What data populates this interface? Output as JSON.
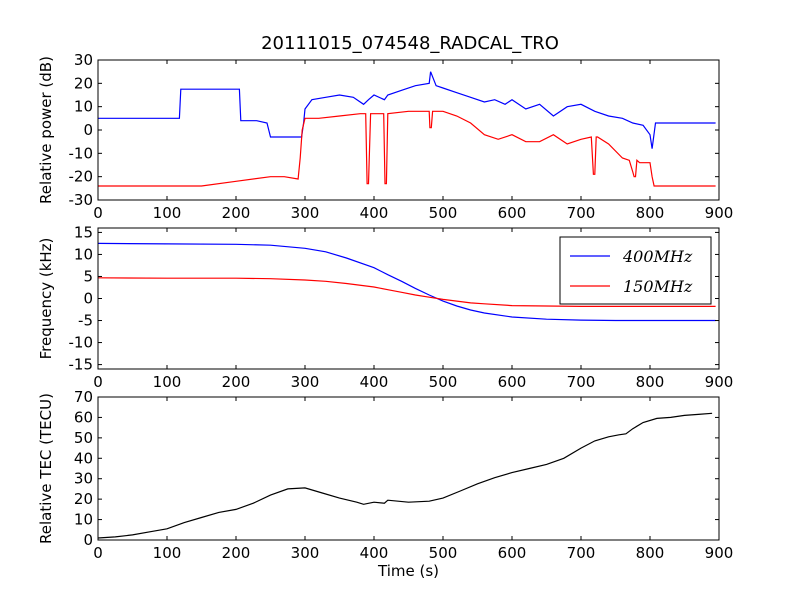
{
  "figure": {
    "title": "20111015_074548_RADCAL_TRO"
  },
  "chart_data": [
    {
      "type": "line",
      "ylabel": "Relative power (dB)",
      "xlabel": "",
      "xlim": [
        0,
        900
      ],
      "ylim": [
        -30,
        30
      ],
      "xticks": [
        0,
        100,
        200,
        300,
        400,
        500,
        600,
        700,
        800,
        900
      ],
      "yticks": [
        -30,
        -20,
        -10,
        0,
        10,
        20,
        30
      ],
      "grid": false,
      "legend": "none",
      "series": [
        {
          "color": "#0000ff",
          "x": [
            0,
            40,
            80,
            118,
            120,
            150,
            180,
            205,
            207,
            230,
            245,
            250,
            270,
            290,
            295,
            298,
            300,
            310,
            330,
            350,
            370,
            385,
            392,
            400,
            415,
            420,
            440,
            460,
            480,
            482,
            490,
            500,
            520,
            540,
            560,
            575,
            590,
            600,
            620,
            640,
            660,
            680,
            700,
            720,
            740,
            760,
            775,
            790,
            800,
            803,
            808,
            830,
            860,
            895
          ],
          "y": [
            5,
            5,
            5,
            5,
            17.5,
            17.5,
            17.5,
            17.5,
            4,
            4,
            3,
            -3,
            -3,
            -3,
            -3,
            3,
            9,
            13,
            14,
            15,
            14,
            11,
            13,
            15,
            13,
            15,
            17,
            19,
            20,
            25,
            19,
            18,
            16,
            14,
            12,
            13,
            11,
            13,
            9,
            11,
            6,
            10,
            11,
            8,
            6,
            5,
            3,
            2,
            -2,
            -8,
            3,
            3,
            3,
            3
          ]
        },
        {
          "color": "#ff0000",
          "x": [
            0,
            50,
            100,
            150,
            200,
            250,
            270,
            290,
            293,
            296,
            300,
            320,
            350,
            380,
            388,
            390,
            392,
            395,
            410,
            414,
            416,
            418,
            420,
            450,
            480,
            481,
            483,
            485,
            500,
            520,
            540,
            560,
            580,
            600,
            620,
            640,
            660,
            680,
            700,
            715,
            718,
            720,
            722,
            724,
            740,
            760,
            770,
            775,
            777,
            779,
            781,
            785,
            800,
            803,
            806,
            830,
            860,
            895
          ],
          "y": [
            -24,
            -24,
            -24,
            -24,
            -22,
            -20,
            -20,
            -21,
            -12,
            0,
            5,
            5,
            6,
            7,
            7,
            -23,
            -23,
            7,
            7,
            7,
            -23,
            -23,
            7,
            8,
            8,
            1,
            1,
            8,
            8,
            6,
            3,
            -2,
            -4,
            -2,
            -5,
            -5,
            -2,
            -6,
            -4,
            -3,
            -19,
            -19,
            -3,
            -3,
            -6,
            -12,
            -13,
            -18,
            -20,
            -20,
            -13,
            -14,
            -14,
            -20,
            -24,
            -24,
            -24,
            -24
          ]
        }
      ]
    },
    {
      "type": "line",
      "ylabel": "Frequency (kHz)",
      "xlabel": "",
      "xlim": [
        0,
        900
      ],
      "ylim": [
        -16,
        16
      ],
      "xticks": [
        0,
        100,
        200,
        300,
        400,
        500,
        600,
        700,
        800,
        900
      ],
      "yticks": [
        -15,
        -10,
        -5,
        0,
        5,
        10,
        15
      ],
      "grid": false,
      "legend": "top-right",
      "series": [
        {
          "name": "400MHz",
          "color": "#0000ff",
          "x": [
            0,
            100,
            200,
            250,
            300,
            330,
            360,
            400,
            420,
            440,
            460,
            480,
            500,
            520,
            540,
            560,
            600,
            650,
            700,
            750,
            800,
            850,
            895
          ],
          "y": [
            12.5,
            12.4,
            12.3,
            12.1,
            11.4,
            10.6,
            9.2,
            7.0,
            5.4,
            3.9,
            2.3,
            0.8,
            -0.6,
            -1.7,
            -2.6,
            -3.3,
            -4.2,
            -4.7,
            -4.9,
            -5.0,
            -5.0,
            -5.0,
            -5.0
          ]
        },
        {
          "name": "150MHz",
          "color": "#ff0000",
          "x": [
            0,
            100,
            200,
            250,
            300,
            330,
            360,
            400,
            420,
            440,
            460,
            480,
            500,
            520,
            540,
            560,
            600,
            650,
            700,
            750,
            800,
            850,
            895
          ],
          "y": [
            4.7,
            4.6,
            4.6,
            4.5,
            4.2,
            3.9,
            3.4,
            2.6,
            2.0,
            1.4,
            0.8,
            0.3,
            -0.2,
            -0.6,
            -1.0,
            -1.2,
            -1.6,
            -1.7,
            -1.8,
            -1.8,
            -1.8,
            -1.8,
            -1.8
          ]
        }
      ]
    },
    {
      "type": "line",
      "ylabel": "Relative TEC (TECU)",
      "xlabel": "Time (s)",
      "xlim": [
        0,
        900
      ],
      "ylim": [
        0,
        70
      ],
      "xticks": [
        0,
        100,
        200,
        300,
        400,
        500,
        600,
        700,
        800,
        900
      ],
      "yticks": [
        0,
        10,
        20,
        30,
        40,
        50,
        60,
        70
      ],
      "grid": false,
      "legend": "none",
      "series": [
        {
          "color": "#000000",
          "x": [
            0,
            25,
            50,
            75,
            100,
            125,
            150,
            175,
            200,
            225,
            250,
            275,
            300,
            325,
            350,
            375,
            385,
            400,
            415,
            420,
            450,
            480,
            500,
            525,
            550,
            575,
            600,
            625,
            650,
            675,
            700,
            720,
            740,
            755,
            765,
            775,
            790,
            810,
            830,
            850,
            870,
            890
          ],
          "y": [
            1,
            1.5,
            2.5,
            4,
            5.5,
            8.5,
            11,
            13.5,
            15,
            18,
            22,
            25,
            25.5,
            23,
            20.5,
            18.5,
            17.5,
            18.5,
            18,
            19.5,
            18.5,
            19,
            20.5,
            24,
            27.5,
            30.5,
            33,
            35,
            37,
            40,
            45,
            48.5,
            50.5,
            51.5,
            52,
            54.5,
            57.5,
            59.5,
            60,
            61,
            61.5,
            62
          ]
        }
      ]
    }
  ]
}
